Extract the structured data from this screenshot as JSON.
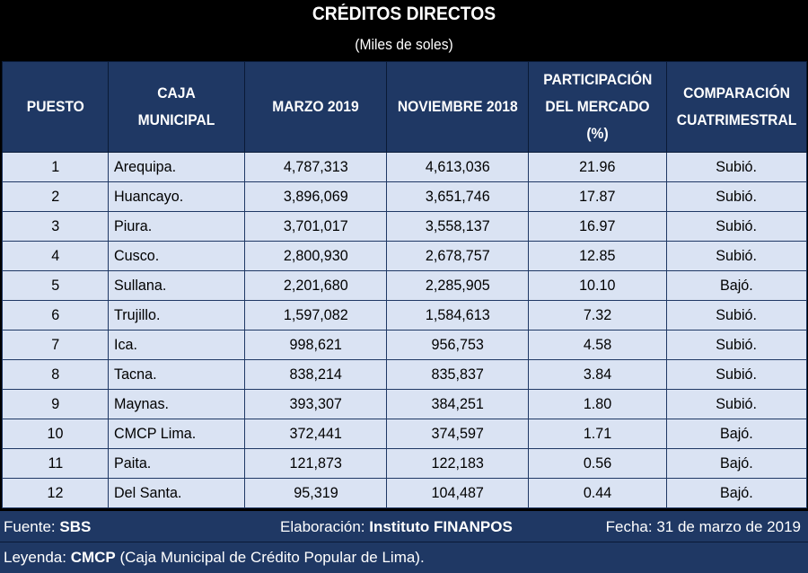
{
  "title": "CRÉDITOS DIRECTOS",
  "subtitle": "(Miles de soles)",
  "headers": {
    "puesto": "PUESTO",
    "caja": "CAJA MUNICIPAL",
    "marzo": "MARZO 2019",
    "noviembre": "NOVIEMBRE 2018",
    "participacion_1": "PARTICIPACIÓN",
    "participacion_2": "DEL MERCADO (%)",
    "comparacion_1": "COMPARACIÓN",
    "comparacion_2": "CUATRIMESTRAL"
  },
  "rows": [
    {
      "puesto": "1",
      "caja": "Arequipa.",
      "marzo": "4,787,313",
      "noviembre": "4,613,036",
      "participacion": "21.96",
      "comparacion": "Subió."
    },
    {
      "puesto": "2",
      "caja": "Huancayo.",
      "marzo": "3,896,069",
      "noviembre": "3,651,746",
      "participacion": "17.87",
      "comparacion": "Subió."
    },
    {
      "puesto": "3",
      "caja": "Piura.",
      "marzo": "3,701,017",
      "noviembre": "3,558,137",
      "participacion": "16.97",
      "comparacion": "Subió."
    },
    {
      "puesto": "4",
      "caja": "Cusco.",
      "marzo": "2,800,930",
      "noviembre": "2,678,757",
      "participacion": "12.85",
      "comparacion": "Subió."
    },
    {
      "puesto": "5",
      "caja": "Sullana.",
      "marzo": "2,201,680",
      "noviembre": "2,285,905",
      "participacion": "10.10",
      "comparacion": "Bajó."
    },
    {
      "puesto": "6",
      "caja": "Trujillo.",
      "marzo": "1,597,082",
      "noviembre": "1,584,613",
      "participacion": "7.32",
      "comparacion": "Subió."
    },
    {
      "puesto": "7",
      "caja": "Ica.",
      "marzo": "998,621",
      "noviembre": "956,753",
      "participacion": "4.58",
      "comparacion": "Subió."
    },
    {
      "puesto": "8",
      "caja": "Tacna.",
      "marzo": "838,214",
      "noviembre": "835,837",
      "participacion": "3.84",
      "comparacion": "Subió."
    },
    {
      "puesto": "9",
      "caja": "Maynas.",
      "marzo": "393,307",
      "noviembre": "384,251",
      "participacion": "1.80",
      "comparacion": "Subió."
    },
    {
      "puesto": "10",
      "caja": "CMCP Lima.",
      "marzo": "372,441",
      "noviembre": "374,597",
      "participacion": "1.71",
      "comparacion": "Bajó."
    },
    {
      "puesto": "11",
      "caja": "Paita.",
      "marzo": "121,873",
      "noviembre": "122,183",
      "participacion": "0.56",
      "comparacion": "Bajó."
    },
    {
      "puesto": "12",
      "caja": "Del Santa.",
      "marzo": "95,319",
      "noviembre": "104,487",
      "participacion": "0.44",
      "comparacion": "Bajó."
    }
  ],
  "footer": {
    "fuente_label": "Fuente: ",
    "fuente_value": "SBS",
    "elaboracion_label": "Elaboración: ",
    "elaboracion_value": "Instituto FINANPOS",
    "fecha": "Fecha: 31 de marzo de 2019",
    "leyenda_label": "Leyenda: ",
    "leyenda_value": "CMCP",
    "leyenda_text": " (Caja Municipal de Crédito Popular de Lima)."
  }
}
